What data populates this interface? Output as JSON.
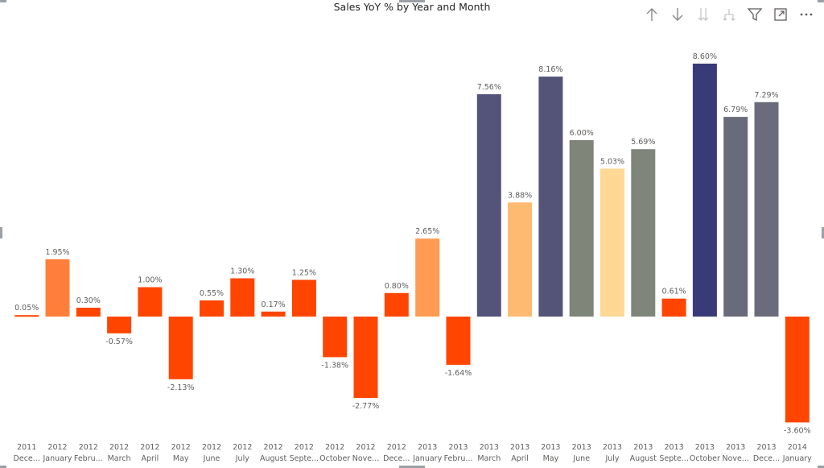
{
  "title": "Sales YoY % by Year and Month",
  "toolbar": {
    "icons": [
      "arrow-up-icon",
      "arrow-down-icon",
      "double-arrow-down-icon",
      "expand-hierarchy-icon",
      "filter-icon",
      "focus-mode-icon",
      "more-options-icon"
    ]
  },
  "chart_data": {
    "type": "bar",
    "title": "Sales YoY % by Year and Month",
    "xlabel": "",
    "ylabel": "",
    "ylim": [
      -3.6,
      8.6
    ],
    "years": [
      "2011",
      "2012",
      "2012",
      "2012",
      "2012",
      "2012",
      "2012",
      "2012",
      "2012",
      "2012",
      "2012",
      "2012",
      "2012",
      "2013",
      "2013",
      "2013",
      "2013",
      "2013",
      "2013",
      "2013",
      "2013",
      "2013",
      "2013",
      "2013",
      "2013",
      "2014"
    ],
    "categories": [
      "Dece...",
      "January",
      "Febru...",
      "March",
      "April",
      "May",
      "June",
      "July",
      "August",
      "Septe...",
      "October",
      "Nove...",
      "Dece...",
      "January",
      "Febru...",
      "March",
      "April",
      "May",
      "June",
      "July",
      "August",
      "Septe...",
      "October",
      "Nove...",
      "Dece...",
      "January"
    ],
    "values": [
      0.05,
      1.95,
      0.3,
      -0.57,
      1.0,
      -2.13,
      0.55,
      1.3,
      0.17,
      1.25,
      -1.38,
      -2.77,
      0.8,
      2.65,
      -1.64,
      7.56,
      3.88,
      8.16,
      6.0,
      5.03,
      5.69,
      0.61,
      8.6,
      6.79,
      7.29,
      -3.6
    ],
    "labels": [
      "0.05%",
      "1.95%",
      "0.30%",
      "-0.57%",
      "1.00%",
      "-2.13%",
      "0.55%",
      "1.30%",
      "0.17%",
      "1.25%",
      "-1.38%",
      "-2.77%",
      "0.80%",
      "2.65%",
      "-1.64%",
      "7.56%",
      "3.88%",
      "8.16%",
      "6.00%",
      "5.03%",
      "5.69%",
      "0.61%",
      "8.60%",
      "6.79%",
      "7.29%",
      "-3.60%"
    ],
    "colors": [
      "#FF4500",
      "#FF7F3A",
      "#FF4500",
      "#FF4500",
      "#FF4500",
      "#FF4500",
      "#FF4500",
      "#FF4500",
      "#FF4500",
      "#FF4500",
      "#FF4500",
      "#FF4500",
      "#FF4500",
      "#FF9B53",
      "#FF4500",
      "#54547A",
      "#FFBA72",
      "#545479",
      "#7F8579",
      "#FFD896",
      "#7F857B",
      "#FF4500",
      "#383B78",
      "#6A6B7A",
      "#6A6C7C",
      "#FF4500"
    ],
    "grid": false,
    "legend": "none"
  }
}
